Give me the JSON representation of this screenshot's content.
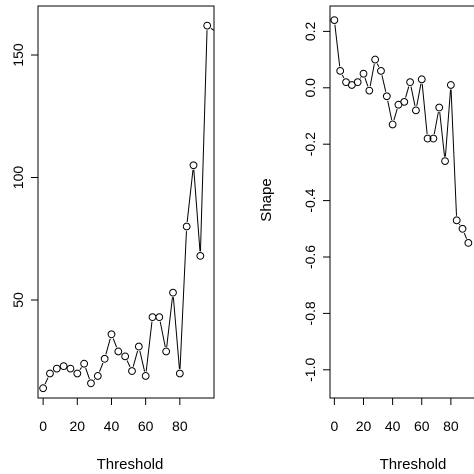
{
  "chart_data": [
    {
      "type": "line",
      "xlabel": "Threshold",
      "ylabel": "",
      "x_ticks": [
        0,
        20,
        40,
        60,
        80
      ],
      "y_ticks": [
        50,
        100,
        150
      ],
      "xlim": [
        -3,
        100
      ],
      "ylim": [
        10,
        170
      ],
      "series": [
        {
          "x": [
            0,
            4,
            8,
            12,
            16,
            20,
            24,
            28,
            32,
            36,
            40,
            44,
            48,
            52,
            56,
            60,
            64,
            68,
            72,
            76,
            80,
            84,
            88,
            92,
            96,
            100
          ],
          "y": [
            14,
            20,
            22,
            23,
            22,
            20,
            24,
            16,
            19,
            26,
            36,
            29,
            27,
            21,
            31,
            19,
            43,
            43,
            29,
            53,
            20,
            80,
            105,
            68,
            162,
            160
          ],
          "markers": [
            true,
            true,
            true,
            true,
            true,
            true,
            true,
            true,
            true,
            true,
            true,
            true,
            true,
            true,
            true,
            true,
            true,
            true,
            true,
            true,
            true,
            true,
            true,
            true,
            true,
            false
          ]
        }
      ]
    },
    {
      "type": "line",
      "xlabel": "Threshold",
      "ylabel": "Shape",
      "x_ticks": [
        0,
        20,
        40,
        60,
        80
      ],
      "y_ticks": [
        0.2,
        0.0,
        -0.2,
        -0.4,
        -0.6,
        -0.8,
        -1.0
      ],
      "y_tick_labels": [
        "0.2",
        "0.0",
        "-0.2",
        "-0.4",
        "-0.6",
        "-0.8",
        "-1.0"
      ],
      "xlim": [
        -3,
        100
      ],
      "ylim": [
        -1.1,
        0.29
      ],
      "series": [
        {
          "x": [
            0,
            4,
            8,
            12,
            16,
            20,
            24,
            28,
            32,
            36,
            40,
            44,
            48,
            52,
            56,
            60,
            64,
            68,
            72,
            76,
            80,
            84,
            88,
            92
          ],
          "y": [
            0.24,
            0.06,
            0.02,
            0.01,
            0.02,
            0.05,
            -0.01,
            0.1,
            0.06,
            -0.03,
            -0.13,
            -0.06,
            -0.05,
            0.02,
            -0.08,
            0.03,
            -0.18,
            -0.18,
            -0.07,
            -0.26,
            0.01,
            -0.47,
            -0.5,
            -0.55
          ],
          "markers": [
            true,
            true,
            true,
            true,
            true,
            true,
            true,
            true,
            true,
            true,
            true,
            true,
            true,
            true,
            true,
            true,
            true,
            true,
            true,
            true,
            true,
            true,
            true,
            true
          ]
        }
      ]
    }
  ]
}
